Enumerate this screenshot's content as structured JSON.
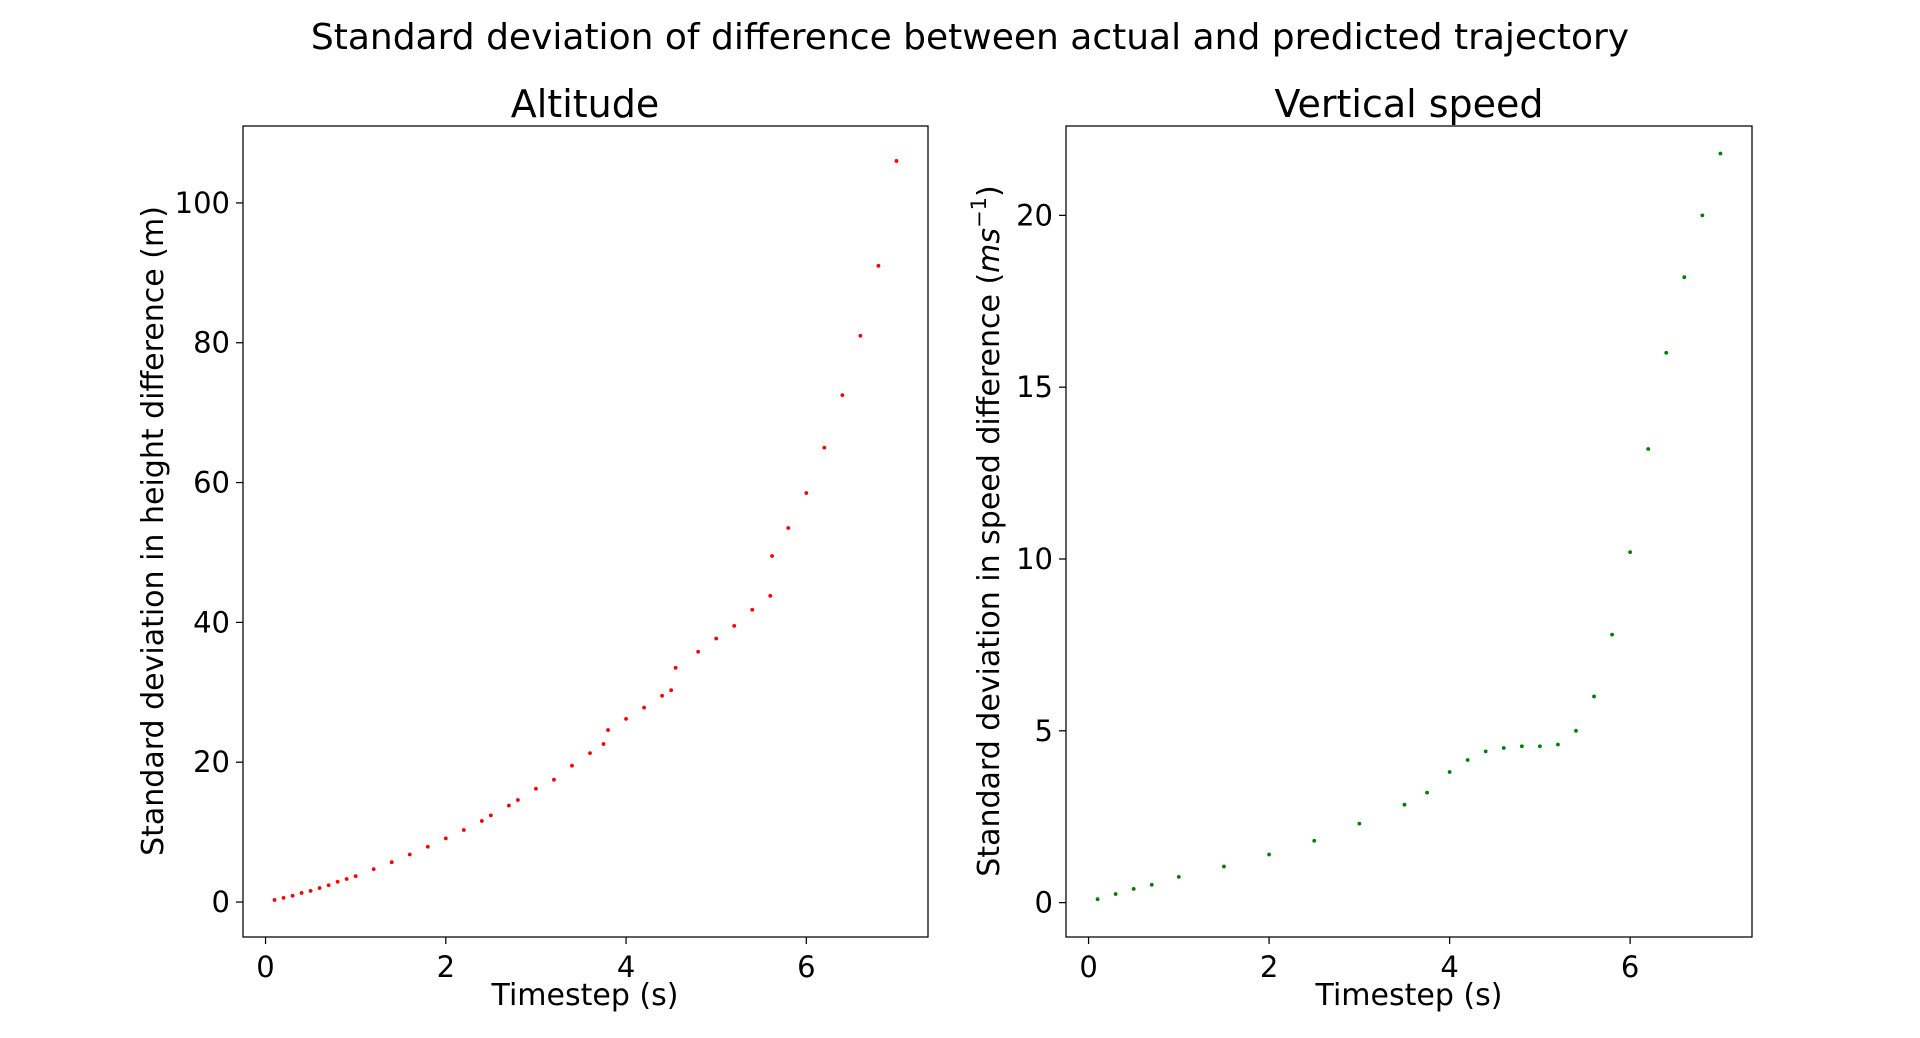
{
  "figure": {
    "suptitle": "Standard deviation of difference between actual and predicted trajectory"
  },
  "chart_data": [
    {
      "type": "scatter",
      "title": "Altitude",
      "xlabel": "Timestep (s)",
      "ylabel": "Standard deviation in height difference (m)",
      "xlim": [
        -0.25,
        7.35
      ],
      "ylim": [
        -5,
        111
      ],
      "xticks": [
        0,
        2,
        4,
        6
      ],
      "yticks": [
        0,
        20,
        40,
        60,
        80,
        100
      ],
      "color": "#ff0000",
      "grid": false,
      "series": [
        {
          "points": [
            [
              0.1,
              0.3
            ],
            [
              0.2,
              0.6
            ],
            [
              0.3,
              0.9
            ],
            [
              0.4,
              1.3
            ],
            [
              0.5,
              1.6
            ],
            [
              0.6,
              2.0
            ],
            [
              0.7,
              2.4
            ],
            [
              0.8,
              2.9
            ],
            [
              0.9,
              3.3
            ],
            [
              1.0,
              3.7
            ],
            [
              1.2,
              4.7
            ],
            [
              1.4,
              5.7
            ],
            [
              1.6,
              6.8
            ],
            [
              1.8,
              7.9
            ],
            [
              2.0,
              9.1
            ],
            [
              2.2,
              10.3
            ],
            [
              2.4,
              11.6
            ],
            [
              2.5,
              12.4
            ],
            [
              2.7,
              13.8
            ],
            [
              2.8,
              14.6
            ],
            [
              3.0,
              16.2
            ],
            [
              3.2,
              17.5
            ],
            [
              3.4,
              19.5
            ],
            [
              3.6,
              21.3
            ],
            [
              3.75,
              22.6
            ],
            [
              3.8,
              24.6
            ],
            [
              4.0,
              26.2
            ],
            [
              4.2,
              27.8
            ],
            [
              4.4,
              29.5
            ],
            [
              4.5,
              30.3
            ],
            [
              4.55,
              33.5
            ],
            [
              4.8,
              35.8
            ],
            [
              5.0,
              37.7
            ],
            [
              5.2,
              39.5
            ],
            [
              5.4,
              41.8
            ],
            [
              5.6,
              43.8
            ],
            [
              5.62,
              49.5
            ],
            [
              5.8,
              53.5
            ],
            [
              6.0,
              58.5
            ],
            [
              6.2,
              65.0
            ],
            [
              6.4,
              72.5
            ],
            [
              6.6,
              81.0
            ],
            [
              6.8,
              91.0
            ],
            [
              7.0,
              106.0
            ]
          ]
        }
      ]
    },
    {
      "type": "scatter",
      "title": "Vertical speed",
      "xlabel": "Timestep (s)",
      "ylabel": "Standard deviation in speed difference (",
      "ylabel_unit": "ms",
      "ylabel_exp": "−1",
      "ylabel_close": ")",
      "xlim": [
        -0.25,
        7.35
      ],
      "ylim": [
        -1,
        22.6
      ],
      "xticks": [
        0,
        2,
        4,
        6
      ],
      "yticks": [
        0,
        5,
        10,
        15,
        20
      ],
      "color": "#008000",
      "grid": false,
      "series": [
        {
          "points": [
            [
              0.1,
              0.1
            ],
            [
              0.3,
              0.25
            ],
            [
              0.5,
              0.4
            ],
            [
              0.7,
              0.52
            ],
            [
              1.0,
              0.75
            ],
            [
              1.5,
              1.05
            ],
            [
              2.0,
              1.4
            ],
            [
              2.5,
              1.8
            ],
            [
              3.0,
              2.3
            ],
            [
              3.5,
              2.85
            ],
            [
              3.75,
              3.2
            ],
            [
              4.0,
              3.8
            ],
            [
              4.2,
              4.15
            ],
            [
              4.4,
              4.4
            ],
            [
              4.6,
              4.5
            ],
            [
              4.8,
              4.55
            ],
            [
              5.0,
              4.55
            ],
            [
              5.2,
              4.6
            ],
            [
              5.4,
              5.0
            ],
            [
              5.6,
              6.0
            ],
            [
              5.8,
              7.8
            ],
            [
              6.0,
              10.2
            ],
            [
              6.2,
              13.2
            ],
            [
              6.4,
              16.0
            ],
            [
              6.6,
              18.2
            ],
            [
              6.8,
              20.0
            ],
            [
              7.0,
              21.8
            ]
          ]
        }
      ]
    }
  ]
}
